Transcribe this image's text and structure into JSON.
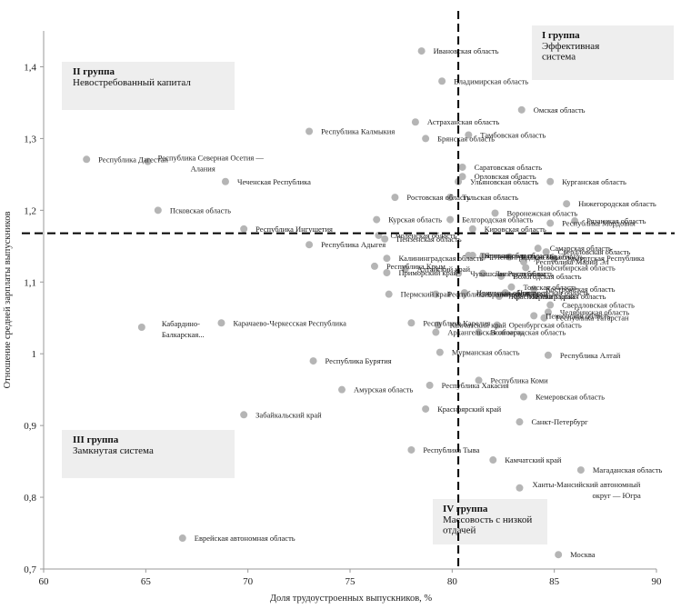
{
  "chart_data": {
    "type": "scatter",
    "xlabel": "Доля трудоустроенных выпускников, %",
    "ylabel": "Отношение средней зарплаты выпускников",
    "xlim": [
      60,
      90
    ],
    "ylim": [
      0.7,
      1.45
    ],
    "xticks": [
      60,
      65,
      70,
      75,
      80,
      85,
      90
    ],
    "yticks": [
      0.7,
      0.8,
      0.9,
      1.0,
      1.1,
      1.2,
      1.3,
      1.4
    ],
    "ytick_labels": [
      "0,7",
      "0,8",
      "0,9",
      "1",
      "1,1",
      "1,2",
      "1,3",
      "1,4"
    ],
    "ref_x": 80.3,
    "ref_y": 1.168,
    "colors": {
      "point": "#b5b5b5",
      "box": "#eeeeee",
      "line": "#000000",
      "axis": "#999999",
      "text": "#222222"
    },
    "groups": [
      {
        "number": "I группа",
        "name_lines": [
          "Эффективная",
          "система"
        ],
        "quadrant": "top-right"
      },
      {
        "number": "II группа",
        "name_lines": [
          "Невостребованный капитал"
        ],
        "quadrant": "top-left"
      },
      {
        "number": "III группа",
        "name_lines": [
          "Замкнутая система"
        ],
        "quadrant": "bottom-left"
      },
      {
        "number": "IV группа",
        "name_lines": [
          "Массовость с низкой",
          "отдачей"
        ],
        "quadrant": "bottom-right"
      }
    ],
    "points": [
      {
        "label": "Ивановская область",
        "x": 78.5,
        "y": 1.422
      },
      {
        "label": "Владимирская область",
        "x": 79.5,
        "y": 1.38
      },
      {
        "label": "Омская область",
        "x": 83.4,
        "y": 1.34
      },
      {
        "label": "Астраханская область",
        "x": 78.2,
        "y": 1.323
      },
      {
        "label": "Республика Калмыкия",
        "x": 73.0,
        "y": 1.31
      },
      {
        "label": "Тамбовская область",
        "x": 80.8,
        "y": 1.305
      },
      {
        "label": "Брянская область",
        "x": 78.7,
        "y": 1.3
      },
      {
        "label": "Республика Дагестан",
        "x": 62.1,
        "y": 1.271
      },
      {
        "label": "Республика Северная Осетия — Алания",
        "x": 65.1,
        "y": 1.268
      },
      {
        "label": "Саратовская область",
        "x": 80.5,
        "y": 1.26
      },
      {
        "label": "Орловская область",
        "x": 80.5,
        "y": 1.247
      },
      {
        "label": "Чеченская Республика",
        "x": 68.9,
        "y": 1.24
      },
      {
        "label": "Ульяновская область",
        "x": 80.3,
        "y": 1.24
      },
      {
        "label": "Курганская область",
        "x": 84.8,
        "y": 1.24
      },
      {
        "label": "Ростовская область",
        "x": 77.2,
        "y": 1.218
      },
      {
        "label": "Тульская область",
        "x": 79.9,
        "y": 1.218
      },
      {
        "label": "Нижегородская область",
        "x": 85.6,
        "y": 1.209
      },
      {
        "label": "Псковская область",
        "x": 65.6,
        "y": 1.2
      },
      {
        "label": "Воронежская область",
        "x": 82.1,
        "y": 1.196
      },
      {
        "label": "Курская область",
        "x": 76.3,
        "y": 1.187
      },
      {
        "label": "Белгородская область",
        "x": 79.9,
        "y": 1.187
      },
      {
        "label": "Рязанская область",
        "x": 86.0,
        "y": 1.185
      },
      {
        "label": "Республика Мордовия",
        "x": 84.8,
        "y": 1.182
      },
      {
        "label": "Республика Ингушетия",
        "x": 69.8,
        "y": 1.174
      },
      {
        "label": "Кировская область",
        "x": 81.0,
        "y": 1.174
      },
      {
        "label": "Смоленская область",
        "x": 76.4,
        "y": 1.165
      },
      {
        "label": "Пензенская область",
        "x": 76.7,
        "y": 1.16
      },
      {
        "label": "Республика Адыгея",
        "x": 73.0,
        "y": 1.152
      },
      {
        "label": "Самарская область",
        "x": 84.2,
        "y": 1.147
      },
      {
        "label": "Свердловская область",
        "x": 84.6,
        "y": 1.142
      },
      {
        "label": "Калининградская область",
        "x": 76.8,
        "y": 1.133
      },
      {
        "label": "Тверская область",
        "x": 80.8,
        "y": 1.137
      },
      {
        "label": "Ярославская область",
        "x": 81.0,
        "y": 1.137
      },
      {
        "label": "Ленинградская область",
        "x": 81.5,
        "y": 1.135
      },
      {
        "label": "Калужская область",
        "x": 82.8,
        "y": 1.135
      },
      {
        "label": "Удмуртская Республика",
        "x": 85.0,
        "y": 1.133
      },
      {
        "label": "Республика Марий Эл",
        "x": 83.5,
        "y": 1.128
      },
      {
        "label": "Республика Крым",
        "x": 76.2,
        "y": 1.122
      },
      {
        "label": "Новосибирская область",
        "x": 83.6,
        "y": 1.12
      },
      {
        "label": "Алтайский край",
        "x": 77.7,
        "y": 1.118
      },
      {
        "label": "Липецкая область",
        "x": 81.5,
        "y": 1.112
      },
      {
        "label": "Приморский край",
        "x": 76.8,
        "y": 1.113
      },
      {
        "label": "Чувашская Республика",
        "x": 80.3,
        "y": 1.112
      },
      {
        "label": "Вологодская область",
        "x": 82.4,
        "y": 1.108
      },
      {
        "label": "Томская область",
        "x": 82.9,
        "y": 1.093
      },
      {
        "label": "Костромская область",
        "x": 84.0,
        "y": 1.09
      },
      {
        "label": "Иркутская область",
        "x": 80.6,
        "y": 1.085
      },
      {
        "label": "Новгородская область",
        "x": 82.6,
        "y": 1.085
      },
      {
        "label": "Пермский край",
        "x": 76.9,
        "y": 1.083
      },
      {
        "label": "Республика Башкортостан",
        "x": 79.2,
        "y": 1.083
      },
      {
        "label": "Ставропольский край",
        "x": 80.6,
        "y": 1.083
      },
      {
        "label": "Красноярский край",
        "x": 82.3,
        "y": 1.08
      },
      {
        "label": "Ленинградская область",
        "x": 83.2,
        "y": 1.08
      },
      {
        "label": "Свердловская область",
        "x": 84.8,
        "y": 1.068
      },
      {
        "label": "Челябинская область",
        "x": 84.7,
        "y": 1.058
      },
      {
        "label": "Пензенская область",
        "x": 84.0,
        "y": 1.053
      },
      {
        "label": "Республика Татарстан",
        "x": 84.5,
        "y": 1.05
      },
      {
        "label": "Кабардино-Балкарская Республика",
        "x": 64.8,
        "y": 1.037
      },
      {
        "label": "Карачаево-Черкесская Республика",
        "x": 68.7,
        "y": 1.043
      },
      {
        "label": "Республика Карелия",
        "x": 78.0,
        "y": 1.043
      },
      {
        "label": "Камчатский край",
        "x": 79.3,
        "y": 1.04
      },
      {
        "label": "Оренбургская область",
        "x": 82.2,
        "y": 1.04
      },
      {
        "label": "Архангельская область",
        "x": 79.2,
        "y": 1.03
      },
      {
        "label": "Волгоградская область",
        "x": 81.3,
        "y": 1.03
      },
      {
        "label": "Мурманская область",
        "x": 79.4,
        "y": 1.002
      },
      {
        "label": "Республика Алтай",
        "x": 84.7,
        "y": 0.998
      },
      {
        "label": "Республика Бурятия",
        "x": 73.2,
        "y": 0.99
      },
      {
        "label": "Республика Коми",
        "x": 81.3,
        "y": 0.963
      },
      {
        "label": "Республика Хакасия",
        "x": 78.9,
        "y": 0.956
      },
      {
        "label": "Амурская область",
        "x": 74.6,
        "y": 0.95
      },
      {
        "label": "Кемеровская область",
        "x": 83.5,
        "y": 0.94
      },
      {
        "label": "Красноярский край",
        "x": 78.7,
        "y": 0.923
      },
      {
        "label": "Забайкальский край",
        "x": 69.8,
        "y": 0.915
      },
      {
        "label": "Санкт-Петербург",
        "x": 83.3,
        "y": 0.905
      },
      {
        "label": "Республика Тыва",
        "x": 78.0,
        "y": 0.866
      },
      {
        "label": "Камчатский край",
        "x": 82.0,
        "y": 0.852
      },
      {
        "label": "Магаданская область",
        "x": 86.3,
        "y": 0.838
      },
      {
        "label": "Ханты-Мансийский автономный округ — Югра",
        "x": 83.3,
        "y": 0.813
      },
      {
        "label": "Еврейская автономная область",
        "x": 66.8,
        "y": 0.743
      },
      {
        "label": "Москва",
        "x": 85.2,
        "y": 0.72
      }
    ]
  }
}
